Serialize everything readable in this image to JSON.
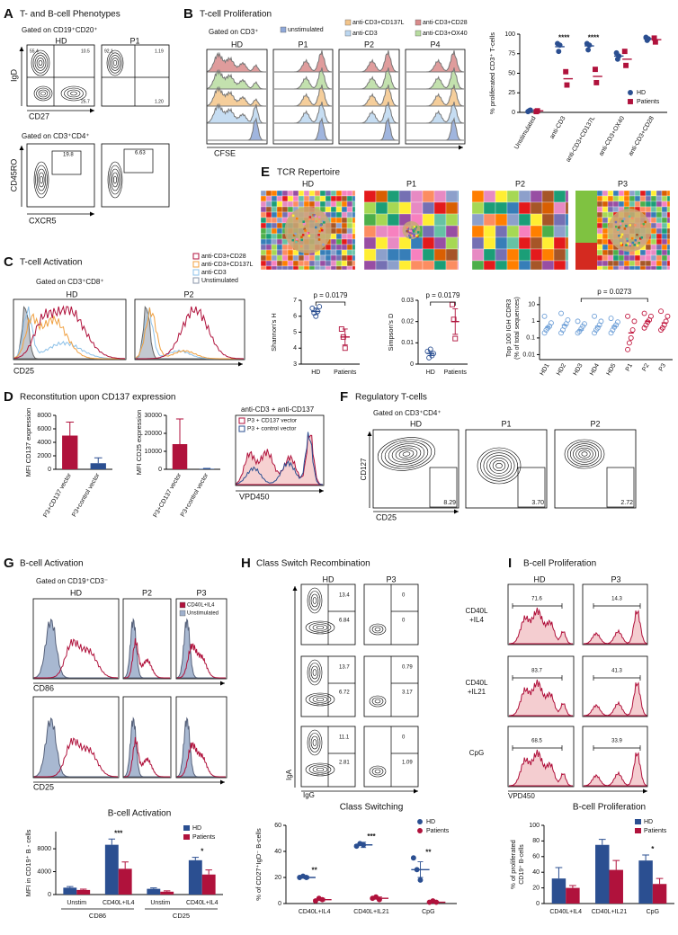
{
  "A": {
    "letter": "A",
    "title": "T- and B-cell Phenotypes",
    "gate_top": "Gated on CD19⁺CD20⁺",
    "gate_bottom": "Gated on CD3⁺CD4⁺",
    "columns": [
      "HD",
      "P1"
    ],
    "top_y": "IgD",
    "top_x": "CD27",
    "bottom_y": "CD45RO",
    "bottom_x": "CXCR5",
    "top_hd": [
      "55.4",
      "10.5",
      "25.7"
    ],
    "top_p1": [
      "92.1",
      "1.19",
      "1.20"
    ],
    "bottom_hd": "19.8",
    "bottom_p1": "6.63"
  },
  "B": {
    "letter": "B",
    "title": "T-cell Proliferation",
    "gate": "Gated on CD3⁺",
    "legend": [
      "unstimulated",
      "anti-CD3+CD137L",
      "anti-CD3",
      "anti-CD3+CD28",
      "anti-CD3+OX40"
    ],
    "colors": [
      "#8fa8d8",
      "#f3c58a",
      "#bcd7f0",
      "#d98b8b",
      "#b8dca0"
    ],
    "columns": [
      "HD",
      "P1",
      "P2",
      "P4"
    ],
    "xlabel": "CFSE"
  },
  "C": {
    "letter": "C",
    "title": "T-cell Activation",
    "gate": "Gated on CD3⁺CD8⁺",
    "legend": [
      "anti-CD3+CD28",
      "anti-CD3+CD137L",
      "anti-CD3",
      "Unstimulated"
    ],
    "colors": [
      "#b0123c",
      "#f0a040",
      "#8cc0e8",
      "#8a94a8"
    ],
    "columns": [
      "HD",
      "P2"
    ],
    "xlabel": "CD25"
  },
  "D": {
    "letter": "D",
    "title": "Reconstitution upon CD137 expression",
    "hist_title": "anti-CD3 + anti-CD137",
    "legend": [
      "P3 + CD137 vector",
      "P3 + control vector"
    ],
    "colors": [
      "#b0123c",
      "#2b4f91"
    ],
    "xlabel": "VPD450"
  },
  "E": {
    "letter": "E",
    "title": "TCR Repertoire",
    "columns": [
      "HD",
      "P1",
      "P2",
      "P3"
    ]
  },
  "F": {
    "letter": "F",
    "title": "Regulatory T-cells",
    "gate": "Gated on CD3⁺CD4⁺",
    "columns": [
      "HD",
      "P1",
      "P2"
    ],
    "gates": [
      "8.29",
      "3.70",
      "2.72"
    ],
    "ylabel": "CD127",
    "xlabel": "CD25"
  },
  "G": {
    "letter": "G",
    "title": "B-cell Activation",
    "gate": "Gated on CD19⁺CD3⁻",
    "columns": [
      "HD",
      "P2",
      "P3"
    ],
    "legend": [
      "CD40L+IL4",
      "Unstimulated"
    ],
    "colors": [
      "#b0123c",
      "#9fb0cc"
    ],
    "xlabels": [
      "CD86",
      "CD25"
    ]
  },
  "H": {
    "letter": "H",
    "title": "Class Switch Recombination",
    "columns": [
      "HD",
      "P3"
    ],
    "gates_hd": [
      [
        "13.4",
        "6.84"
      ],
      [
        "13.7",
        "6.72"
      ],
      [
        "11.1",
        "2.81"
      ]
    ],
    "gates_p3": [
      [
        "0",
        "0"
      ],
      [
        "0.79",
        "3.17"
      ],
      [
        "0",
        "1.09"
      ]
    ],
    "ylabel": "IgA",
    "xlabel": "IgG"
  },
  "rows": [
    [
      "CD40L",
      "+IL4"
    ],
    [
      "CD40L",
      "+IL21"
    ],
    [
      "CpG"
    ]
  ],
  "I": {
    "letter": "I",
    "title": "B-cell Proliferation",
    "columns": [
      "HD",
      "P3"
    ],
    "gates_hd": [
      "71.6",
      "83.7",
      "68.5"
    ],
    "gates_p3": [
      "14.3",
      "41.3",
      "33.9"
    ],
    "xlabel": "VPD450"
  },
  "chart_data": [
    {
      "type": "dot",
      "ylabel": "% proliferated CD3⁺ T-cells",
      "categories": [
        "Unstimulated",
        "anti-CD3",
        "anti-CD3+CD137L",
        "anti-CD3+OX40",
        "anti-CD3+CD28"
      ],
      "series": [
        {
          "name": "HD",
          "color": "#2b4f91",
          "marker": "circle",
          "values": [
            2,
            84,
            85,
            72,
            94
          ],
          "points": [
            [
              1,
              2,
              3
            ],
            [
              88,
              78,
              86
            ],
            [
              88,
              80,
              86
            ],
            [
              76,
              68,
              72
            ],
            [
              96,
              92,
              94
            ]
          ]
        },
        {
          "name": "Patients",
          "color": "#b0123c",
          "marker": "square",
          "values": [
            2,
            43,
            46,
            68,
            93
          ],
          "points": [
            [
              1,
              2
            ],
            [
              52,
              35
            ],
            [
              55,
              38
            ],
            [
              78,
              60
            ],
            [
              95,
              90
            ]
          ]
        }
      ],
      "annotations": [
        null,
        "****",
        "****",
        null,
        null
      ],
      "legend": "lower right",
      "ylim": [
        0,
        100
      ],
      "yticks": [
        0,
        25,
        50,
        75,
        100
      ]
    },
    {
      "type": "bar",
      "ylabel": "MFI CD137 expression",
      "categories": [
        "P3+CD137 vector",
        "P3+control vector"
      ],
      "values": [
        5000,
        900
      ],
      "errors": [
        2000,
        800
      ],
      "colors": [
        "#b0123c",
        "#2b4f91"
      ],
      "ylim": [
        0,
        8000
      ],
      "yticks": [
        0,
        2000,
        4000,
        6000,
        8000
      ]
    },
    {
      "type": "bar",
      "ylabel": "MFI CD25 expression",
      "categories": [
        "P3+CD137 vector",
        "P3+control vector"
      ],
      "values": [
        14000,
        300
      ],
      "errors": [
        14000,
        200
      ],
      "colors": [
        "#b0123c",
        "#2b4f91"
      ],
      "ylim": [
        0,
        30000
      ],
      "yticks": [
        0,
        10000,
        20000,
        30000
      ]
    },
    {
      "type": "dot",
      "ylabel": "Shannon's H",
      "categories": [
        "HD",
        "Patients"
      ],
      "values": [
        6.3,
        4.7
      ],
      "errors": [
        0.2,
        0.5
      ],
      "points": [
        [
          6.5,
          6.2,
          6.0,
          6.3,
          6.6
        ],
        [
          5.2,
          4.7,
          4.0
        ]
      ],
      "colors": [
        "#2b4f91",
        "#b0123c"
      ],
      "markers": [
        "circle",
        "square"
      ],
      "hollow": true,
      "pvalue": "p = 0.0179",
      "ylim": [
        3,
        7
      ],
      "yticks": [
        3,
        4,
        5,
        6,
        7
      ]
    },
    {
      "type": "dot",
      "ylabel": "Simpson's D",
      "categories": [
        "HD",
        "Patients"
      ],
      "values": [
        0.005,
        0.02
      ],
      "errors": [
        0.001,
        0.006
      ],
      "points": [
        [
          0.006,
          0.003,
          0.007,
          0.004,
          0.005
        ],
        [
          0.028,
          0.021,
          0.012
        ]
      ],
      "colors": [
        "#2b4f91",
        "#b0123c"
      ],
      "markers": [
        "circle",
        "square"
      ],
      "hollow": true,
      "pvalue": "p = 0.0179",
      "ylim": [
        0,
        0.03
      ],
      "yticks": [
        0,
        0.01,
        0.02,
        0.03
      ]
    },
    {
      "type": "dot",
      "log": true,
      "ylabel": "Top 100 IGH CDR3",
      "ylabel2": "(% of total sequences)",
      "categories": [
        "HD1",
        "HD2",
        "HD3",
        "HD4",
        "HD5",
        "P1",
        "P2",
        "P3"
      ],
      "values": [
        0.45,
        0.6,
        0.3,
        0.5,
        0.5,
        0.2,
        1,
        0.8
      ],
      "points": [
        [
          0.2,
          0.3,
          0.4,
          0.5,
          0.8,
          2
        ],
        [
          0.2,
          0.3,
          0.5,
          0.7,
          1.2,
          3
        ],
        [
          0.2,
          0.25,
          0.35,
          0.5,
          0.7,
          1
        ],
        [
          0.2,
          0.3,
          0.4,
          0.6,
          1,
          2
        ],
        [
          0.2,
          0.3,
          0.45,
          0.6,
          0.9,
          1.5
        ],
        [
          0.02,
          0.05,
          0.1,
          0.3,
          1,
          2
        ],
        [
          0.4,
          0.6,
          0.9,
          1.2,
          2,
          3
        ],
        [
          0.3,
          0.4,
          0.6,
          1,
          2,
          4
        ]
      ],
      "colors": [
        "#6fa0d8",
        "#6fa0d8",
        "#6fa0d8",
        "#6fa0d8",
        "#6fa0d8",
        "#c0143c",
        "#c0143c",
        "#c0143c"
      ],
      "hollow": true,
      "pvalue": "p = 0.0273",
      "ylim": [
        0.005,
        30
      ],
      "yticks": [
        0.01,
        0.1,
        1,
        10
      ]
    },
    {
      "type": "bar",
      "title": "B-cell Activation",
      "ylabel": "MFI in CD19⁺ B - cells",
      "categories": [
        "Unstim",
        "CD40L+IL4",
        "Unstim",
        "CD40L+IL4"
      ],
      "groups": [
        "CD86",
        "CD25"
      ],
      "series": [
        {
          "name": "HD",
          "color": "#2b4f91",
          "values": [
            1200,
            8700,
            1000,
            6000
          ],
          "errors": [
            200,
            1000,
            150,
            500
          ]
        },
        {
          "name": "Patients",
          "color": "#b0123c",
          "values": [
            800,
            4500,
            500,
            3500
          ],
          "errors": [
            150,
            1200,
            150,
            800
          ]
        }
      ],
      "annotations": [
        null,
        "***",
        null,
        "*"
      ],
      "legend": "upper right",
      "ylim": [
        0,
        11000
      ],
      "yticks": [
        0,
        4000,
        8000
      ]
    },
    {
      "type": "dot",
      "title": "Class Switching",
      "ylabel": "% of CD27⁺IgD⁻ B-cells",
      "categories": [
        "CD40L+IL4",
        "CD40L+IL21",
        "CpG"
      ],
      "series": [
        {
          "name": "HD",
          "color": "#2b4f91",
          "marker": "circle",
          "values": [
            20,
            45,
            26
          ],
          "errors": [
            1,
            2,
            6
          ],
          "points": [
            [
              20,
              21,
              20
            ],
            [
              44,
              46,
              45
            ],
            [
              35,
              26,
              18
            ]
          ]
        },
        {
          "name": "Patients",
          "color": "#b0123c",
          "marker": "circle",
          "values": [
            3,
            4,
            1
          ],
          "errors": [
            1,
            1,
            0.5
          ],
          "points": [
            [
              2,
              4,
              3
            ],
            [
              4,
              5,
              3
            ],
            [
              1,
              2,
              1
            ]
          ]
        }
      ],
      "annotations": [
        "**",
        "***",
        "**"
      ],
      "legend": "upper right",
      "ylim": [
        0,
        60
      ],
      "yticks": [
        0,
        20,
        40,
        60
      ]
    },
    {
      "type": "bar",
      "title": "B-cell Proliferation",
      "ylabel": "% of proliferated",
      "ylabel2": "CD19⁺ B-cells",
      "categories": [
        "CD40L+IL4",
        "CD40L+IL21",
        "CpG"
      ],
      "series": [
        {
          "name": "HD",
          "color": "#2b4f91",
          "values": [
            32,
            75,
            55
          ],
          "errors": [
            14,
            7,
            7
          ]
        },
        {
          "name": "Patients",
          "color": "#b0123c",
          "values": [
            20,
            43,
            25
          ],
          "errors": [
            3,
            12,
            7
          ]
        }
      ],
      "annotations": [
        null,
        null,
        "*"
      ],
      "legend": "upper right",
      "ylim": [
        0,
        100
      ],
      "yticks": [
        0,
        20,
        40,
        60,
        80,
        100
      ]
    }
  ]
}
